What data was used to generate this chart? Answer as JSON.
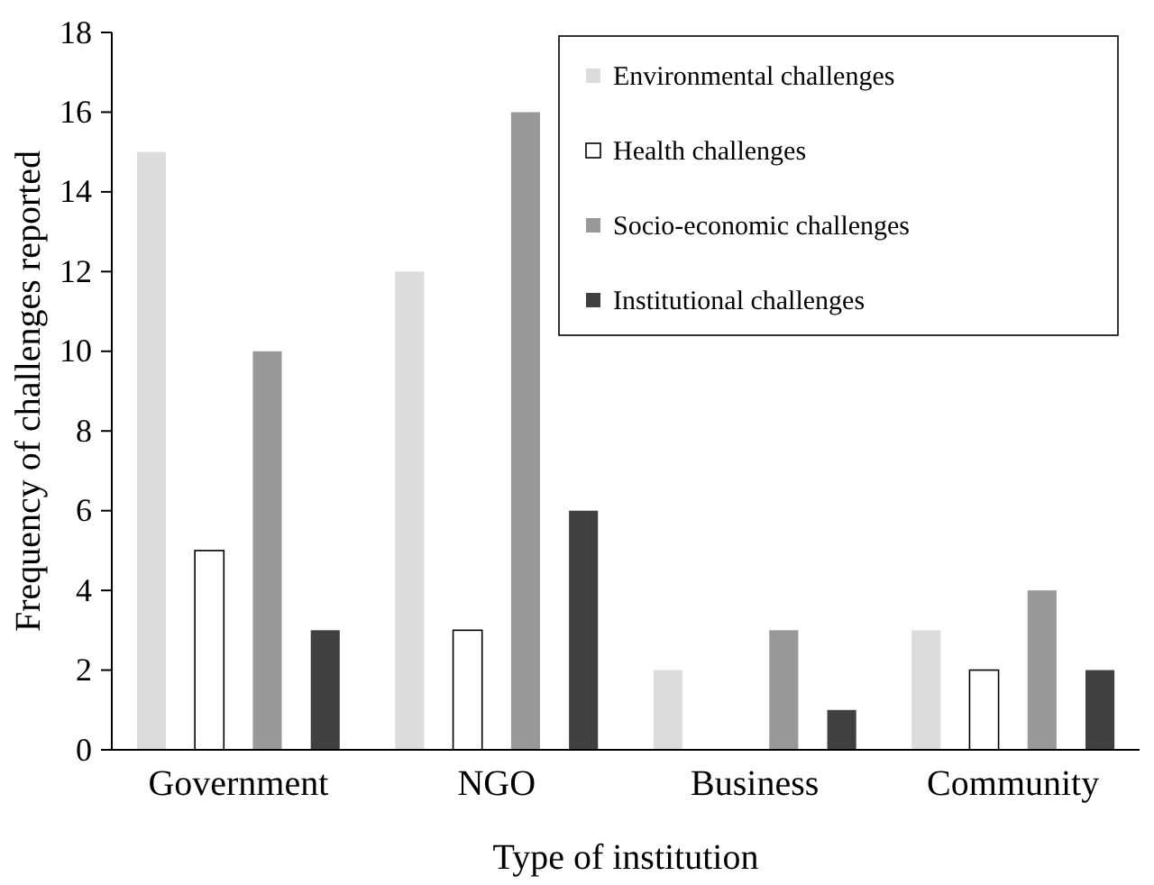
{
  "chart_data": {
    "type": "bar",
    "xlabel": "Type of institution",
    "ylabel": "Frequency of challenges reported",
    "categories": [
      "Government",
      "NGO",
      "Business",
      "Community"
    ],
    "series": [
      {
        "name": "Environmental challenges",
        "color": "#dcdcdc",
        "values": [
          15,
          12,
          2,
          3
        ]
      },
      {
        "name": "Health challenges",
        "color": "#ffffff",
        "values": [
          5,
          3,
          0,
          2
        ]
      },
      {
        "name": "Socio-economic challenges",
        "color": "#999999",
        "values": [
          10,
          16,
          3,
          4
        ]
      },
      {
        "name": "Institutional challenges",
        "color": "#404040",
        "values": [
          3,
          6,
          1,
          2
        ]
      }
    ],
    "ylim": [
      0,
      18
    ],
    "yticks": [
      0,
      2,
      4,
      6,
      8,
      10,
      12,
      14,
      16,
      18
    ],
    "grid": false,
    "legend": "top right"
  }
}
